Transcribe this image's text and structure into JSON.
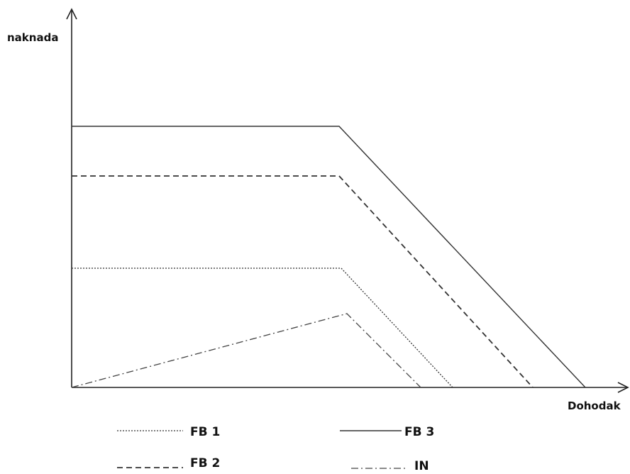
{
  "chart_data": {
    "type": "line",
    "xlabel": "Dohodak",
    "ylabel": "naknada",
    "grid": false,
    "ticks": false,
    "legend_position": "bottom",
    "series": [
      {
        "name": "FB 1",
        "dash": "dotted",
        "points": [
          [
            0,
            168
          ],
          [
            380,
            168
          ],
          [
            537,
            0
          ]
        ]
      },
      {
        "name": "FB 2",
        "dash": "dashed",
        "points": [
          [
            0,
            298
          ],
          [
            377,
            298
          ],
          [
            650,
            0
          ]
        ]
      },
      {
        "name": "FB 3",
        "dash": "solid",
        "points": [
          [
            0,
            368
          ],
          [
            377,
            368
          ],
          [
            724,
            0
          ]
        ]
      },
      {
        "name": "IN",
        "dash": "dashdot",
        "points": [
          [
            0,
            0
          ],
          [
            388,
            104
          ],
          [
            492,
            0
          ]
        ]
      }
    ]
  }
}
